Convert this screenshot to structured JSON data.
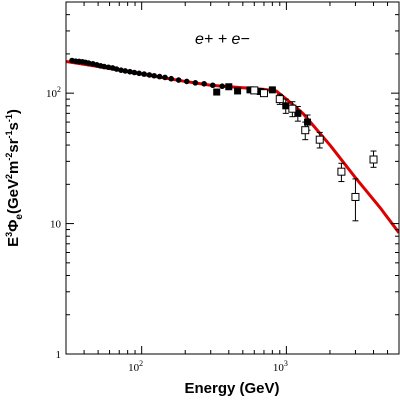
{
  "chart_data": {
    "type": "scatter",
    "annotation": "e+ + e−",
    "xlabel": "Energy (GeV)",
    "ylabel": {
      "base": "E",
      "sup1": "3",
      "phi": "Φ",
      "sub": "e",
      "units_open": "(GeV",
      "sup2": "2",
      "m": "m",
      "sup_m": "-2",
      "sr": "sr",
      "sup_sr": "-1",
      "s": "s",
      "sup_s": "-1",
      "units_close": ")"
    },
    "x_scale": "log",
    "y_scale": "log",
    "xlim": [
      30,
      6000
    ],
    "ylim": [
      1,
      500
    ],
    "x_ticks": [
      {
        "value": 100,
        "base": "10",
        "exp": "2"
      },
      {
        "value": 1000,
        "base": "10",
        "exp": "3"
      }
    ],
    "y_ticks": [
      {
        "value": 1,
        "label": "1"
      },
      {
        "value": 10,
        "label": "10"
      },
      {
        "value": 100,
        "base": "10",
        "exp": "2"
      }
    ],
    "grid": false,
    "model_curve": {
      "color": "#dd0000",
      "x": [
        30,
        50,
        100,
        200,
        300,
        500,
        700,
        850,
        1000,
        1300,
        2000,
        3000,
        4500,
        6000
      ],
      "y": [
        175,
        160,
        140,
        123,
        115,
        110,
        107,
        104,
        90,
        70,
        40,
        22.5,
        13,
        8.5
      ]
    },
    "series": [
      {
        "marker": "circle-filled",
        "x": [
          33,
          35,
          37,
          39,
          41,
          43,
          46,
          49,
          52,
          55,
          59,
          63,
          67,
          72,
          77,
          83,
          89,
          96,
          104,
          113,
          122,
          133,
          145,
          160,
          180,
          205,
          235,
          270,
          310,
          360
        ],
        "y": [
          178,
          176,
          175,
          174,
          172,
          170,
          168,
          165,
          162,
          160,
          158,
          156,
          153,
          150,
          148,
          146,
          144,
          142,
          140,
          138,
          136,
          134,
          132,
          129,
          126,
          123,
          120,
          118,
          115,
          113
        ]
      },
      {
        "marker": "square-filled",
        "x": [
          330,
          400,
          460,
          560,
          660,
          800,
          990,
          1200,
          1400
        ],
        "y": [
          102,
          112,
          104,
          106,
          103,
          106,
          80,
          70,
          60
        ],
        "err_low": [
          0,
          0,
          0,
          0,
          0,
          0,
          10,
          9,
          8
        ],
        "err_high": [
          0,
          0,
          0,
          0,
          0,
          0,
          10,
          9,
          8
        ]
      },
      {
        "marker": "square-open",
        "x": [
          600,
          700,
          900,
          1100,
          1350,
          1700,
          2400,
          3000,
          4000
        ],
        "y": [
          105,
          100,
          90,
          76,
          52,
          44,
          25,
          16,
          31
        ],
        "err_low": [
          0,
          0,
          8,
          10,
          8,
          6,
          4,
          5.5,
          4
        ],
        "err_high": [
          0,
          0,
          8,
          10,
          8,
          6,
          4,
          6,
          5
        ]
      }
    ]
  }
}
